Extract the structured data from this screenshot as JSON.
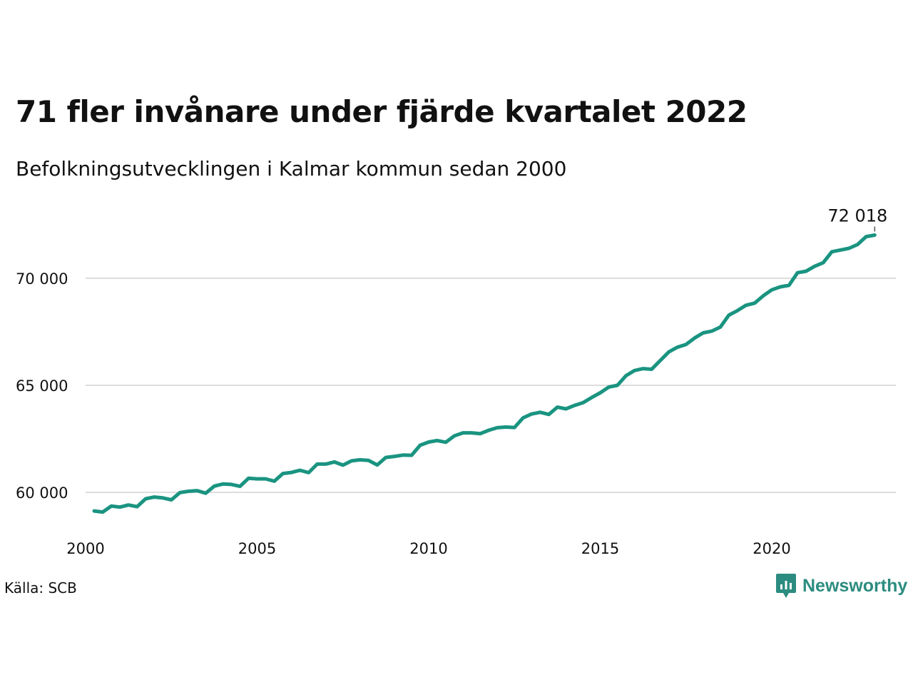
{
  "title": "71 fler invånare under fjärde kvartalet 2022",
  "subtitle": "Befolkningsutvecklingen i Kalmar kommun sedan 2000",
  "source": "Källa: SCB",
  "brand": "Newsworthy",
  "colors": {
    "line": "#1a9481",
    "grid": "#dddddd",
    "brand": "#2c8c80"
  },
  "chart_data": {
    "type": "line",
    "title": "71 fler invånare under fjärde kvartalet 2022",
    "subtitle": "Befolkningsutvecklingen i Kalmar kommun sedan 2000",
    "xlabel": "",
    "ylabel": "",
    "grid": true,
    "xlim": [
      2000,
      2023.5
    ],
    "ylim": [
      58300,
      73000
    ],
    "x_ticks": [
      2000,
      2005,
      2010,
      2015,
      2020
    ],
    "x_tick_labels": [
      "2000",
      "2005",
      "2010",
      "2015",
      "2020"
    ],
    "y_ticks": [
      60000,
      65000,
      70000
    ],
    "y_tick_labels": [
      "60 000",
      "65 000",
      "70 000"
    ],
    "end_label": "72 018",
    "x": [
      2000.25,
      2000.5,
      2000.75,
      2001,
      2001.25,
      2001.5,
      2001.75,
      2002,
      2002.25,
      2002.5,
      2002.75,
      2003,
      2003.25,
      2003.5,
      2003.75,
      2004,
      2004.25,
      2004.5,
      2004.75,
      2005,
      2005.25,
      2005.5,
      2005.75,
      2006,
      2006.25,
      2006.5,
      2006.75,
      2007,
      2007.25,
      2007.5,
      2007.75,
      2008,
      2008.25,
      2008.5,
      2008.75,
      2009,
      2009.25,
      2009.5,
      2009.75,
      2010,
      2010.25,
      2010.5,
      2010.75,
      2011,
      2011.25,
      2011.5,
      2011.75,
      2012,
      2012.25,
      2012.5,
      2012.75,
      2013,
      2013.25,
      2013.5,
      2013.75,
      2014,
      2014.25,
      2014.5,
      2014.75,
      2015,
      2015.25,
      2015.5,
      2015.75,
      2016,
      2016.25,
      2016.5,
      2016.75,
      2017,
      2017.25,
      2017.5,
      2017.75,
      2018,
      2018.25,
      2018.5,
      2018.75,
      2019,
      2019.25,
      2019.5,
      2019.75,
      2020,
      2020.25,
      2020.5,
      2020.75,
      2021,
      2021.25,
      2021.5,
      2021.75,
      2022,
      2022.25,
      2022.5,
      2022.75,
      2023
    ],
    "series": [
      {
        "values": [
          59130,
          59080,
          59360,
          59310,
          59410,
          59330,
          59700,
          59780,
          59740,
          59650,
          59990,
          60050,
          60080,
          59960,
          60290,
          60390,
          60370,
          60280,
          60660,
          60630,
          60630,
          60520,
          60880,
          60930,
          61030,
          60920,
          61320,
          61320,
          61420,
          61270,
          61470,
          61520,
          61490,
          61280,
          61630,
          61680,
          61740,
          61730,
          62200,
          62350,
          62420,
          62340,
          62640,
          62780,
          62780,
          62740,
          62900,
          63020,
          63050,
          63030,
          63480,
          63660,
          63740,
          63640,
          63980,
          63900,
          64060,
          64190,
          64430,
          64650,
          64920,
          65000,
          65450,
          65690,
          65780,
          65750,
          66160,
          66560,
          66780,
          66910,
          67210,
          67450,
          67530,
          67720,
          68280,
          68490,
          68740,
          68840,
          69180,
          69460,
          69600,
          69670,
          70260,
          70330,
          70560,
          70730,
          71240,
          71320,
          71400,
          71580,
          71947,
          72018
        ]
      }
    ]
  }
}
